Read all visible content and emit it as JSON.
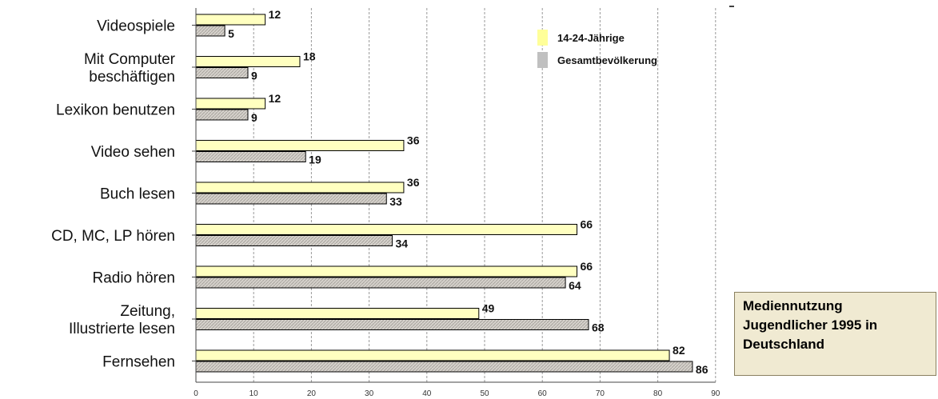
{
  "chart_data": {
    "type": "bar",
    "orientation": "horizontal",
    "title": [
      "Mediennutzung",
      "Jugendlicher 1995 in",
      "Deutschland"
    ],
    "categories": [
      [
        "Videospiele"
      ],
      [
        "Mit Computer",
        "beschäftigen"
      ],
      [
        "Lexikon benutzen"
      ],
      [
        "Video sehen"
      ],
      [
        "Buch lesen"
      ],
      [
        "CD, MC, LP hören"
      ],
      [
        "Radio hören"
      ],
      [
        "Zeitung,",
        "Illustrierte lesen"
      ],
      [
        "Fernsehen"
      ]
    ],
    "series": [
      {
        "name": "14-24-Jährige",
        "color": "#ffffc0",
        "values": [
          12,
          18,
          12,
          36,
          36,
          66,
          66,
          49,
          82
        ]
      },
      {
        "name": "Gesamtbevölkerung",
        "color": "#d4d0cc",
        "values": [
          5,
          9,
          9,
          19,
          33,
          34,
          64,
          68,
          86
        ]
      }
    ],
    "xlim": [
      0,
      90
    ],
    "xticks": [
      0,
      10,
      20,
      30,
      40,
      50,
      60,
      70,
      80,
      90
    ],
    "grid": "vertical dashed",
    "legend_position": "top-right"
  }
}
